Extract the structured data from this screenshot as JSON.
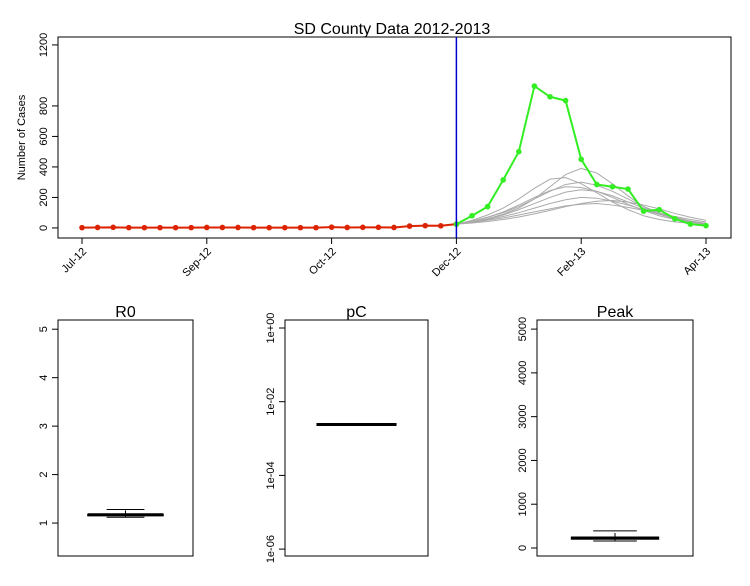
{
  "chart_data": [
    {
      "type": "line",
      "title": "SD County Data 2012-2013",
      "ylabel": "Number of Cases",
      "categories": [
        "Jul-12",
        null,
        null,
        null,
        null,
        null,
        null,
        null,
        "Sep-12",
        null,
        null,
        null,
        null,
        null,
        null,
        null,
        "Oct-12",
        null,
        null,
        null,
        null,
        null,
        null,
        null,
        "Dec-12",
        null,
        null,
        null,
        null,
        null,
        null,
        null,
        "Feb-13",
        null,
        null,
        null,
        null,
        null,
        null,
        null,
        "Apr-13"
      ],
      "ylim": [
        -66,
        1252
      ],
      "yticks": [
        0,
        200,
        400,
        600,
        800,
        1200
      ],
      "vline": {
        "x": 24,
        "color": "#0000cc"
      },
      "simulation_color": "#aaaaaa",
      "simulations": [
        [
          null,
          null,
          null,
          null,
          null,
          null,
          null,
          null,
          null,
          null,
          null,
          null,
          null,
          null,
          null,
          null,
          null,
          null,
          null,
          null,
          null,
          null,
          null,
          null,
          25,
          40,
          60,
          90,
          130,
          190,
          270,
          350,
          390,
          360,
          290,
          210,
          140,
          90,
          60,
          40,
          25
        ],
        [
          null,
          null,
          null,
          null,
          null,
          null,
          null,
          null,
          null,
          null,
          null,
          null,
          null,
          null,
          null,
          null,
          null,
          null,
          null,
          null,
          null,
          null,
          null,
          null,
          25,
          45,
          70,
          100,
          140,
          190,
          240,
          285,
          300,
          280,
          240,
          190,
          140,
          100,
          70,
          45,
          30
        ],
        [
          null,
          null,
          null,
          null,
          null,
          null,
          null,
          null,
          null,
          null,
          null,
          null,
          null,
          null,
          null,
          null,
          null,
          null,
          null,
          null,
          null,
          null,
          null,
          null,
          25,
          40,
          60,
          85,
          120,
          160,
          200,
          235,
          250,
          240,
          210,
          170,
          130,
          95,
          65,
          45,
          30
        ],
        [
          null,
          null,
          null,
          null,
          null,
          null,
          null,
          null,
          null,
          null,
          null,
          null,
          null,
          null,
          null,
          null,
          null,
          null,
          null,
          null,
          null,
          null,
          null,
          null,
          25,
          38,
          55,
          75,
          100,
          130,
          160,
          185,
          200,
          195,
          175,
          150,
          120,
          90,
          65,
          45,
          30
        ],
        [
          null,
          null,
          null,
          null,
          null,
          null,
          null,
          null,
          null,
          null,
          null,
          null,
          null,
          null,
          null,
          null,
          null,
          null,
          null,
          null,
          null,
          null,
          null,
          null,
          25,
          35,
          50,
          65,
          85,
          105,
          125,
          145,
          155,
          160,
          150,
          135,
          115,
          95,
          75,
          55,
          40
        ],
        [
          null,
          null,
          null,
          null,
          null,
          null,
          null,
          null,
          null,
          null,
          null,
          null,
          null,
          null,
          null,
          null,
          null,
          null,
          null,
          null,
          null,
          null,
          null,
          null,
          25,
          50,
          85,
          130,
          190,
          260,
          320,
          330,
          290,
          230,
          170,
          120,
          80,
          55,
          40,
          30,
          20
        ],
        [
          null,
          null,
          null,
          null,
          null,
          null,
          null,
          null,
          null,
          null,
          null,
          null,
          null,
          null,
          null,
          null,
          null,
          null,
          null,
          null,
          null,
          null,
          null,
          null,
          25,
          32,
          42,
          55,
          72,
          92,
          115,
          140,
          160,
          175,
          180,
          170,
          150,
          125,
          95,
          70,
          50
        ],
        [
          null,
          null,
          null,
          null,
          null,
          null,
          null,
          null,
          null,
          null,
          null,
          null,
          null,
          null,
          null,
          null,
          null,
          null,
          null,
          null,
          null,
          null,
          null,
          null,
          25,
          45,
          70,
          105,
          150,
          200,
          245,
          270,
          265,
          240,
          200,
          155,
          115,
          80,
          55,
          38,
          25
        ]
      ],
      "series": [
        {
          "color": "#dd2200",
          "values": [
            2,
            3,
            4,
            2,
            2,
            2,
            2,
            2,
            3,
            3,
            3,
            2,
            2,
            2,
            2,
            2,
            5,
            3,
            4,
            4,
            3,
            12,
            15,
            14,
            25,
            null,
            null,
            null,
            null,
            null,
            null,
            null,
            null,
            null,
            null,
            null,
            null,
            null,
            null,
            null,
            null
          ]
        },
        {
          "color": "#33ee22",
          "values": [
            null,
            null,
            null,
            null,
            null,
            null,
            null,
            null,
            null,
            null,
            null,
            null,
            null,
            null,
            null,
            null,
            null,
            null,
            null,
            null,
            null,
            null,
            null,
            null,
            25,
            80,
            140,
            315,
            500,
            930,
            860,
            835,
            450,
            285,
            270,
            255,
            110,
            120,
            60,
            25,
            15
          ]
        }
      ]
    },
    {
      "type": "box",
      "title": "R0",
      "ylim": [
        0.32,
        5.19
      ],
      "yticks": [
        1,
        2,
        3,
        4,
        5
      ],
      "min": 1.12,
      "q1": 1.15,
      "median": 1.17,
      "q3": 1.18,
      "max": 1.28
    },
    {
      "type": "box",
      "title": "pC",
      "log": true,
      "ylim": [
        6.5e-07,
        1.65
      ],
      "yticks": [
        {
          "value": 1,
          "label": "1e+00"
        },
        {
          "value": 0.01,
          "label": "1e-02"
        },
        {
          "value": 0.0001,
          "label": "1e-04"
        },
        {
          "value": 1e-06,
          "label": "1e-06"
        }
      ],
      "min": 0.0024,
      "q1": 0.0024,
      "median": 0.0024,
      "q3": 0.0024,
      "max": 0.0024
    },
    {
      "type": "box",
      "title": "Peak",
      "ylim": [
        -183,
        5208
      ],
      "yticks": [
        0,
        1000,
        2000,
        3000,
        4000,
        5000
      ],
      "min": 160,
      "q1": 200,
      "median": 228,
      "q3": 250,
      "max": 390
    }
  ]
}
